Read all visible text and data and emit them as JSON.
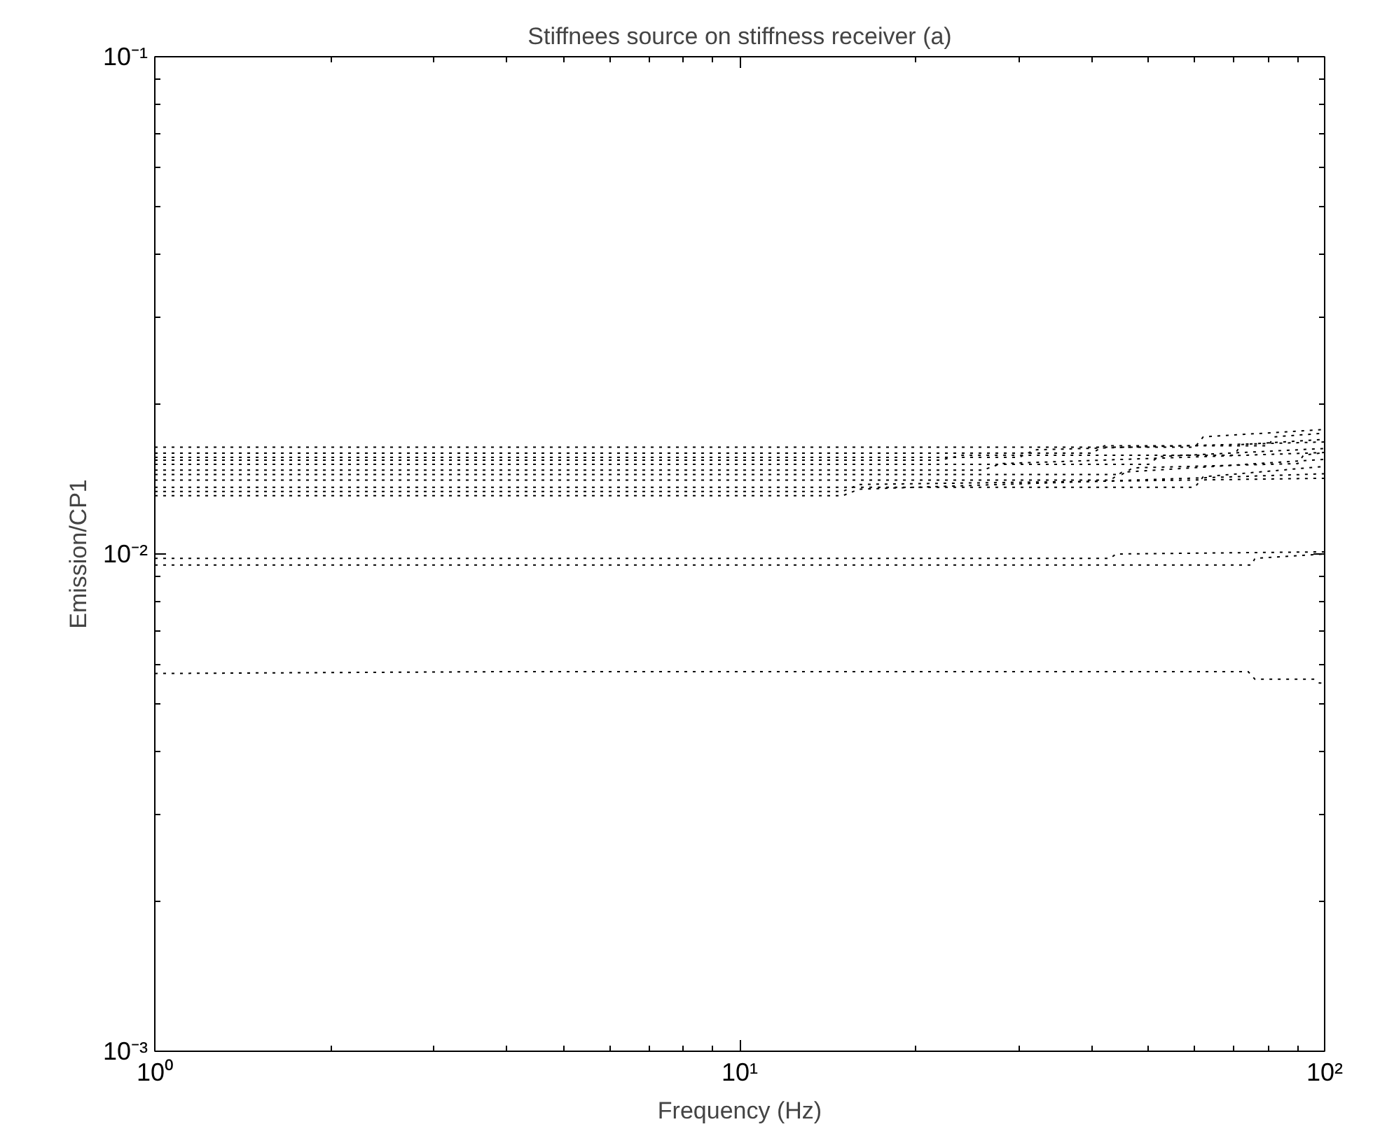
{
  "chart_data": {
    "type": "line",
    "title": "Stiffnees source on stiffness receiver (a)",
    "xlabel": "Frequency (Hz)",
    "ylabel": "Emission/CP1",
    "log": "xy",
    "grid": false,
    "line_style": "dotted",
    "marker": "none",
    "xlim": [
      1,
      100
    ],
    "ylim": [
      0.001,
      0.1
    ],
    "xticks": [
      {
        "value": 1,
        "label": "10⁰"
      },
      {
        "value": 10,
        "label": "10¹"
      },
      {
        "value": 100,
        "label": "10²"
      }
    ],
    "yticks": [
      {
        "value": 0.001,
        "label": "10⁻³"
      },
      {
        "value": 0.01,
        "label": "10⁻²"
      },
      {
        "value": 0.1,
        "label": "10⁻¹"
      }
    ],
    "series": [
      {
        "color": "#000000",
        "x": [
          1,
          60,
          62,
          100
        ],
        "values": [
          0.0164,
          0.0164,
          0.0172,
          0.0178
        ]
      },
      {
        "color": "#000000",
        "x": [
          1,
          40,
          42,
          80,
          82,
          100
        ],
        "values": [
          0.01595,
          0.01595,
          0.0165,
          0.0165,
          0.0172,
          0.0175
        ]
      },
      {
        "color": "#000000",
        "x": [
          1,
          30,
          32,
          100
        ],
        "values": [
          0.01564,
          0.01564,
          0.0162,
          0.0168
        ]
      },
      {
        "color": "#000000",
        "x": [
          1,
          22,
          24,
          70,
          72,
          100
        ],
        "values": [
          0.01544,
          0.01544,
          0.0158,
          0.0158,
          0.0166,
          0.017
        ]
      },
      {
        "color": "#000000",
        "x": [
          1,
          50,
          52,
          100
        ],
        "values": [
          0.01514,
          0.01514,
          0.0157,
          0.0163
        ]
      },
      {
        "color": "#000000",
        "x": [
          1,
          26,
          28,
          100
        ],
        "values": [
          0.01474,
          0.01474,
          0.0152,
          0.016
        ]
      },
      {
        "color": "#000000",
        "x": [
          1,
          45,
          47,
          90,
          92,
          100
        ],
        "values": [
          0.01445,
          0.01445,
          0.0149,
          0.0152,
          0.0158,
          0.016
        ]
      },
      {
        "color": "#000000",
        "x": [
          1,
          43,
          45,
          100
        ],
        "values": [
          0.01408,
          0.01408,
          0.0146,
          0.0155
        ]
      },
      {
        "color": "#000000",
        "x": [
          1,
          60,
          62,
          100
        ],
        "values": [
          0.01362,
          0.01362,
          0.0143,
          0.015
        ]
      },
      {
        "color": "#000000",
        "x": [
          1,
          15,
          16,
          100
        ],
        "values": [
          0.01336,
          0.01336,
          0.0138,
          0.0142
        ]
      },
      {
        "color": "#000000",
        "x": [
          1,
          15,
          16,
          100
        ],
        "values": [
          0.0131,
          0.0131,
          0.0135,
          0.0145
        ]
      },
      {
        "color": "#000000",
        "x": [
          1,
          43,
          44,
          100
        ],
        "values": [
          0.0098,
          0.0098,
          0.01,
          0.0101
        ]
      },
      {
        "color": "#000000",
        "x": [
          1,
          75,
          76,
          100
        ],
        "values": [
          0.0095,
          0.0095,
          0.0098,
          0.01
        ]
      },
      {
        "color": "#000000",
        "x": [
          1,
          4,
          74,
          76,
          96,
          98,
          100
        ],
        "values": [
          0.00575,
          0.0058,
          0.0058,
          0.0056,
          0.0056,
          0.0055,
          0.0055
        ]
      }
    ]
  }
}
